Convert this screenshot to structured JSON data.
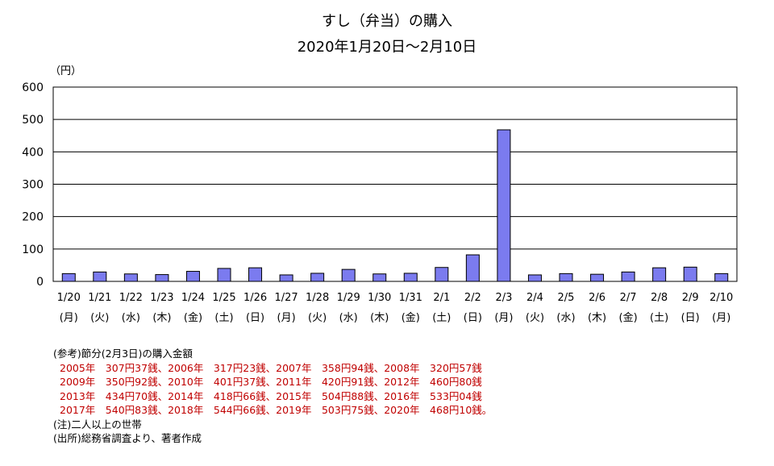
{
  "chart_data": {
    "type": "bar",
    "title": "すし（弁当）の購入",
    "subtitle": "2020年1月20日～2月10日",
    "ylabel": "（円）",
    "ylim": [
      0,
      600
    ],
    "yticks": [
      0,
      100,
      200,
      300,
      400,
      500,
      600
    ],
    "grid": true,
    "bar_color": "#7b7bef",
    "categories": [
      "1/20",
      "1/21",
      "1/22",
      "1/23",
      "1/24",
      "1/25",
      "1/26",
      "1/27",
      "1/28",
      "1/29",
      "1/30",
      "1/31",
      "2/1",
      "2/2",
      "2/3",
      "2/4",
      "2/5",
      "2/6",
      "2/7",
      "2/8",
      "2/9",
      "2/10"
    ],
    "weekdays": [
      "(月)",
      "(火)",
      "(水)",
      "(木)",
      "(金)",
      "(土)",
      "(日)",
      "(月)",
      "(火)",
      "(水)",
      "(木)",
      "(金)",
      "(土)",
      "(日)",
      "(月)",
      "(火)",
      "(水)",
      "(木)",
      "(金)",
      "(土)",
      "(日)",
      "(月)"
    ],
    "values": [
      24,
      29,
      23,
      21,
      31,
      40,
      42,
      20,
      25,
      37,
      23,
      25,
      43,
      82,
      468,
      20,
      24,
      22,
      29,
      42,
      44,
      24
    ]
  },
  "notes": {
    "heading": "(参考)節分(2月3日)の購入金額",
    "lines": [
      "2005年　307円37銭、2006年　317円23銭、2007年　358円94銭、2008年　320円57銭",
      "2009年　350円92銭、2010年　401円37銭、2011年　420円91銭、2012年　460円80銭",
      "2013年　434円70銭、2014年　418円66銭、2015年　504円88銭、2016年　533円04銭",
      "2017年　540円83銭、2018年　544円66銭、2019年　503円75銭、2020年　468円10銭。"
    ],
    "note": "(注)二人以上の世帯",
    "source": "(出所)総務省調査より、著者作成"
  }
}
